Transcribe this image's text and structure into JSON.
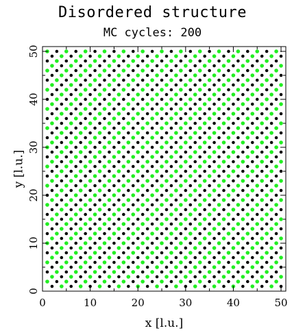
{
  "chart_data": {
    "type": "scatter",
    "title": "Disordered structure",
    "subtitle": "MC cycles: 200",
    "xlabel": "x [l.u.]",
    "ylabel": "y [l.u.]",
    "xlim": [
      0,
      51
    ],
    "ylim": [
      0,
      51
    ],
    "xticks": [
      0,
      10,
      20,
      30,
      40,
      50
    ],
    "yticks": [
      0,
      10,
      20,
      30,
      40,
      50
    ],
    "lattice": {
      "x_range": [
        1,
        50
      ],
      "y_range": [
        1,
        50
      ],
      "step": 1,
      "occupied_checkerboard_parity": 1,
      "species_ratio_green_to_black": 3
    },
    "series": [
      {
        "color": "#22ee22"
      },
      {
        "color": "#000000"
      }
    ],
    "grid": false
  }
}
